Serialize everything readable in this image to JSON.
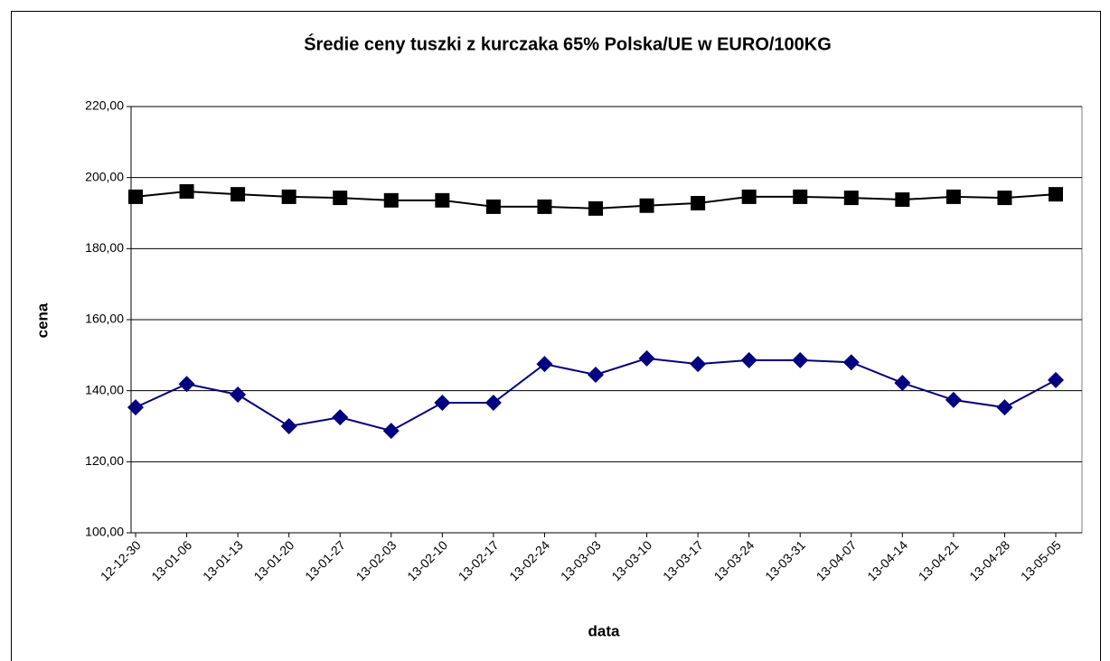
{
  "chart_data": {
    "type": "line",
    "title": "Średie ceny tuszki z kurczaka 65% Polska/UE w EURO/100KG",
    "x_label": "data",
    "y_label": "cena",
    "categories": [
      "12-12-30",
      "13-01-06",
      "13-01-13",
      "13-01-20",
      "13-01-27",
      "13-02-03",
      "13-02-10",
      "13-02-17",
      "13-02-24",
      "13-03-03",
      "13-03-10",
      "13-03-17",
      "13-03-24",
      "13-03-31",
      "13-04-07",
      "13-04-14",
      "13-04-21",
      "13-04-28",
      "13-05-05"
    ],
    "series": [
      {
        "color": "#000000",
        "marker": "square",
        "values": [
          194.6,
          196.1,
          195.3,
          194.6,
          194.3,
          193.6,
          193.6,
          191.8,
          191.8,
          191.3,
          192.1,
          192.8,
          194.6,
          194.6,
          194.3,
          193.8,
          194.6,
          194.3,
          195.3
        ]
      },
      {
        "color": "#000080",
        "marker": "diamond",
        "values": [
          135.3,
          141.9,
          138.9,
          130.0,
          132.5,
          128.7,
          136.6,
          136.6,
          147.5,
          144.5,
          149.1,
          147.5,
          148.6,
          148.6,
          148.0,
          142.2,
          137.4,
          135.3,
          143.0
        ]
      }
    ],
    "ylim": [
      100,
      220
    ],
    "yticks": [
      {
        "value": 100,
        "label": "100,00"
      },
      {
        "value": 120,
        "label": "120,00"
      },
      {
        "value": 140,
        "label": "140,00"
      },
      {
        "value": 160,
        "label": "160,00"
      },
      {
        "value": 180,
        "label": "180,00"
      },
      {
        "value": 200,
        "label": "200,00"
      },
      {
        "value": 220,
        "label": "220,00"
      }
    ],
    "grid": true
  }
}
